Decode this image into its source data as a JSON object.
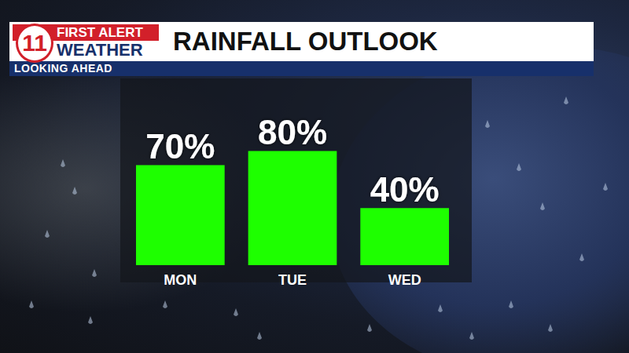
{
  "logo": {
    "number": "11",
    "lines": [
      "FIRST ALERT",
      "WEATHER"
    ]
  },
  "chart_data": {
    "type": "bar",
    "title": "RAINFALL OUTLOOK",
    "subtitle": "LOOKING AHEAD",
    "categories": [
      "MON",
      "TUE",
      "WED"
    ],
    "values": [
      70,
      80,
      40
    ],
    "value_labels": [
      "70%",
      "80%",
      "40%"
    ],
    "color": "#1eff00",
    "ylim": [
      0,
      100
    ],
    "data_labels": true,
    "tick_labels": "x",
    "grid": false
  }
}
